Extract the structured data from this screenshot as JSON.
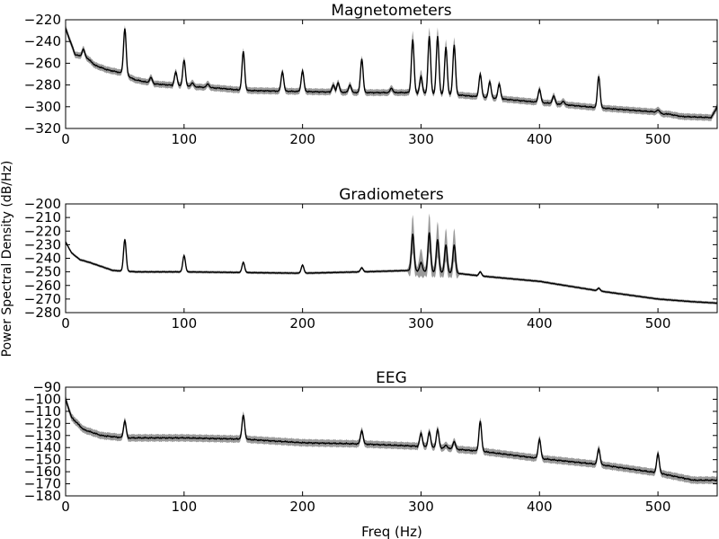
{
  "figure": {
    "ylabel": "Power Spectral Density (dB/Hz)",
    "xlabel": "Freq (Hz)"
  },
  "chart_data": [
    {
      "type": "line",
      "title": "Magnetometers",
      "xlim": [
        0,
        550
      ],
      "ylim": [
        -320,
        -220
      ],
      "xticks": [
        0,
        100,
        200,
        300,
        400,
        500
      ],
      "yticks": [
        -320,
        -300,
        -280,
        -260,
        -240,
        -220
      ],
      "baseline": [
        [
          0,
          -228
        ],
        [
          8,
          -252
        ],
        [
          14,
          -254
        ],
        [
          18,
          -255
        ],
        [
          25,
          -262
        ],
        [
          35,
          -266
        ],
        [
          48,
          -269
        ],
        [
          58,
          -275
        ],
        [
          75,
          -279
        ],
        [
          100,
          -281
        ],
        [
          130,
          -283
        ],
        [
          150,
          -285
        ],
        [
          200,
          -286
        ],
        [
          250,
          -287
        ],
        [
          290,
          -287
        ],
        [
          330,
          -289
        ],
        [
          360,
          -292
        ],
        [
          400,
          -296
        ],
        [
          450,
          -301
        ],
        [
          500,
          -305
        ],
        [
          520,
          -309
        ],
        [
          545,
          -310
        ],
        [
          550,
          -300
        ]
      ],
      "band": 3,
      "peaks": [
        [
          15,
          -247
        ],
        [
          50,
          -228
        ],
        [
          72,
          -273
        ],
        [
          93,
          -268
        ],
        [
          100,
          -257
        ],
        [
          107,
          -278
        ],
        [
          120,
          -279
        ],
        [
          150,
          -249
        ],
        [
          183,
          -268
        ],
        [
          200,
          -267
        ],
        [
          226,
          -280
        ],
        [
          230,
          -278
        ],
        [
          240,
          -280
        ],
        [
          250,
          -256
        ],
        [
          275,
          -283
        ],
        [
          293,
          -238
        ],
        [
          300,
          -272
        ],
        [
          307,
          -235
        ],
        [
          314,
          -235
        ],
        [
          321,
          -245
        ],
        [
          328,
          -243
        ],
        [
          350,
          -270
        ],
        [
          358,
          -277
        ],
        [
          366,
          -279
        ],
        [
          400,
          -284
        ],
        [
          412,
          -290
        ],
        [
          420,
          -295
        ],
        [
          450,
          -272
        ],
        [
          500,
          -303
        ],
        [
          505,
          -307
        ]
      ],
      "peak_spread": [
        [
          293,
          8
        ],
        [
          300,
          6
        ],
        [
          307,
          8
        ],
        [
          314,
          8
        ],
        [
          321,
          7
        ],
        [
          328,
          7
        ]
      ]
    },
    {
      "type": "line",
      "title": "Gradiometers",
      "xlim": [
        0,
        550
      ],
      "ylim": [
        -280,
        -200
      ],
      "xticks": [
        0,
        100,
        200,
        300,
        400,
        500
      ],
      "yticks": [
        -280,
        -270,
        -260,
        -250,
        -240,
        -230,
        -220,
        -210,
        -200
      ],
      "baseline": [
        [
          0,
          -228
        ],
        [
          5,
          -236
        ],
        [
          12,
          -241
        ],
        [
          20,
          -243
        ],
        [
          30,
          -246
        ],
        [
          40,
          -249
        ],
        [
          60,
          -250
        ],
        [
          100,
          -250
        ],
        [
          200,
          -251
        ],
        [
          250,
          -250
        ],
        [
          290,
          -249
        ],
        [
          330,
          -251
        ],
        [
          350,
          -253
        ],
        [
          400,
          -257
        ],
        [
          450,
          -264
        ],
        [
          500,
          -270
        ],
        [
          530,
          -272
        ],
        [
          550,
          -273
        ]
      ],
      "band": 1,
      "peaks": [
        [
          50,
          -226
        ],
        [
          100,
          -238
        ],
        [
          150,
          -243
        ],
        [
          200,
          -245
        ],
        [
          250,
          -247
        ],
        [
          293,
          -222
        ],
        [
          300,
          -243
        ],
        [
          307,
          -221
        ],
        [
          314,
          -226
        ],
        [
          321,
          -230
        ],
        [
          328,
          -230
        ],
        [
          350,
          -250
        ],
        [
          400,
          -257
        ],
        [
          450,
          -262
        ]
      ],
      "peak_spread": [
        [
          293,
          14
        ],
        [
          300,
          10
        ],
        [
          307,
          14
        ],
        [
          314,
          13
        ],
        [
          321,
          12
        ],
        [
          328,
          12
        ]
      ]
    },
    {
      "type": "line",
      "title": "EEG",
      "xlim": [
        0,
        550
      ],
      "ylim": [
        -180,
        -90
      ],
      "xticks": [
        0,
        100,
        200,
        300,
        400,
        500
      ],
      "yticks": [
        -180,
        -170,
        -160,
        -150,
        -140,
        -130,
        -120,
        -110,
        -100,
        -90
      ],
      "baseline": [
        [
          0,
          -100
        ],
        [
          5,
          -115
        ],
        [
          15,
          -125
        ],
        [
          30,
          -130
        ],
        [
          50,
          -132
        ],
        [
          100,
          -132
        ],
        [
          150,
          -133
        ],
        [
          200,
          -136
        ],
        [
          250,
          -137
        ],
        [
          300,
          -139
        ],
        [
          350,
          -143
        ],
        [
          400,
          -149
        ],
        [
          450,
          -154
        ],
        [
          500,
          -161
        ],
        [
          530,
          -167
        ],
        [
          550,
          -167
        ]
      ],
      "band": 3,
      "peaks": [
        [
          50,
          -118
        ],
        [
          150,
          -113
        ],
        [
          250,
          -126
        ],
        [
          300,
          -128
        ],
        [
          307,
          -127
        ],
        [
          314,
          -125
        ],
        [
          321,
          -138
        ],
        [
          328,
          -135
        ],
        [
          350,
          -118
        ],
        [
          400,
          -133
        ],
        [
          450,
          -141
        ],
        [
          500,
          -145
        ]
      ],
      "peak_spread": []
    }
  ]
}
